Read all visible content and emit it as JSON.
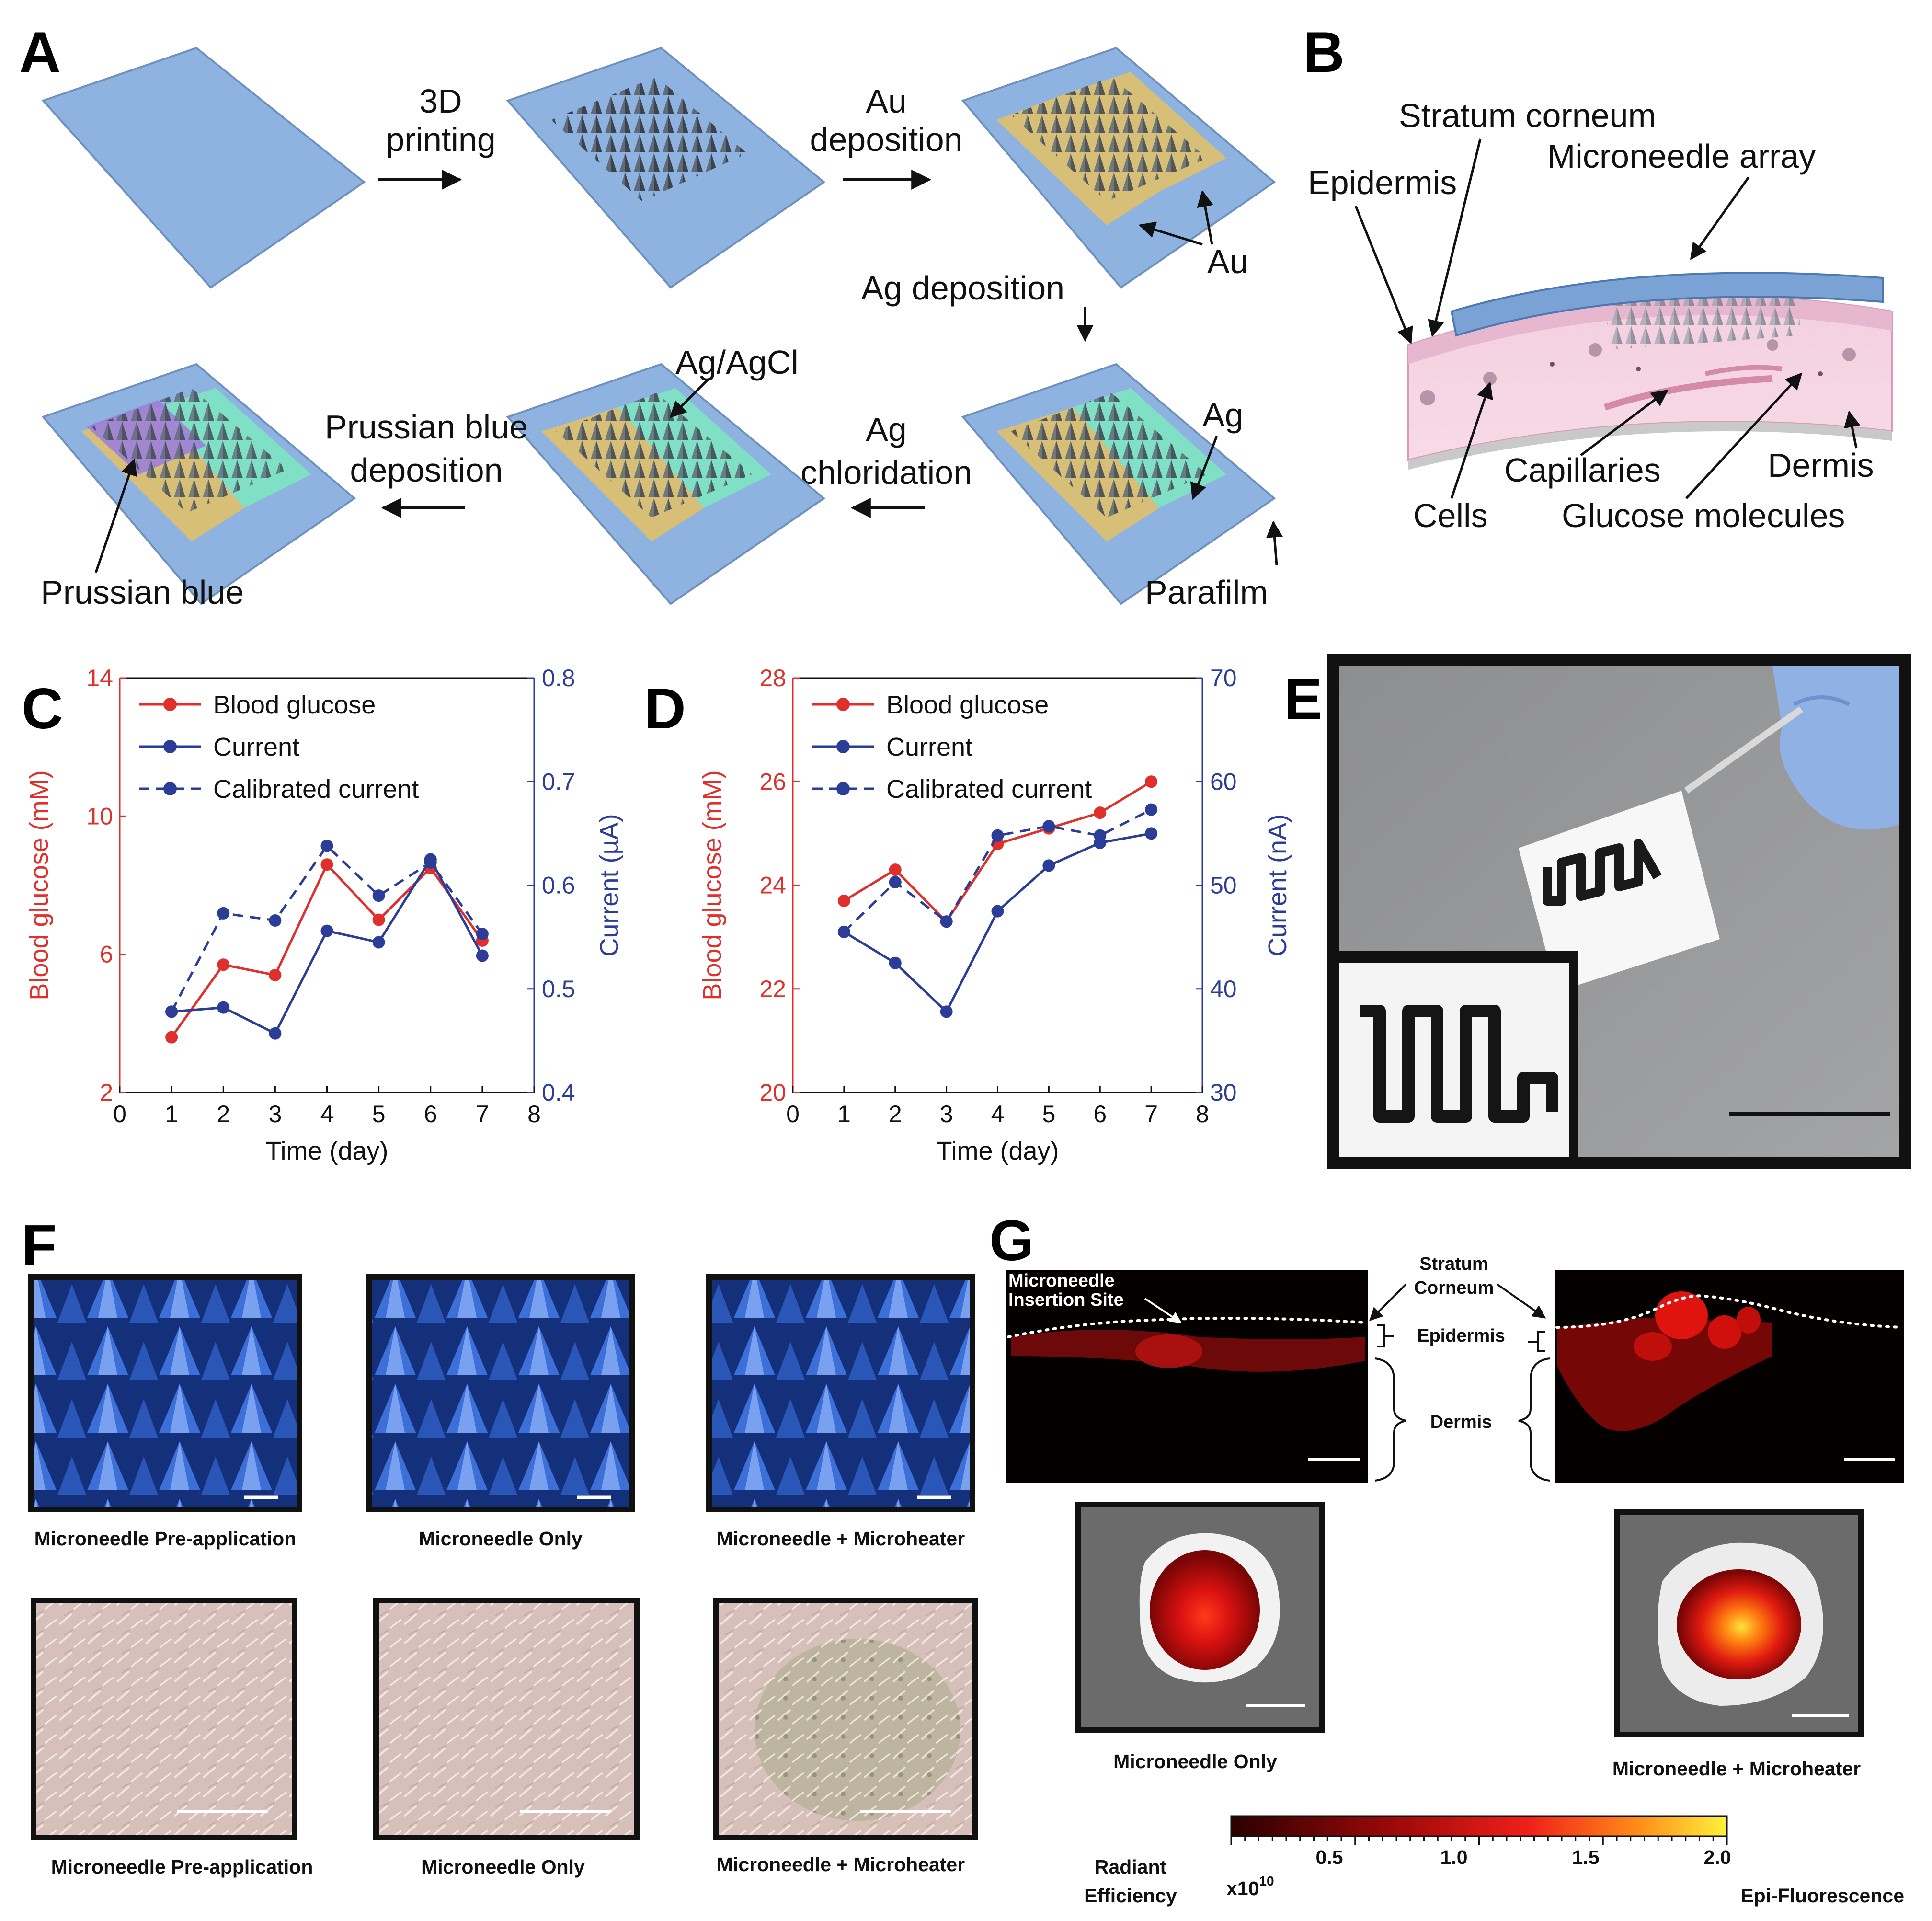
{
  "colors": {
    "blood_glucose": "#e0302b",
    "current": "#2c3d98",
    "substrate": "#8fb3e0",
    "gold": "#d8bf78",
    "agcl": "#7fe0c6"
  },
  "panel_a": {
    "label": "A",
    "steps": {
      "printing": [
        "3D",
        "printing"
      ],
      "au_deposition": [
        "Au",
        "deposition"
      ],
      "ag_deposition": "Ag deposition",
      "ag_chloridation": [
        "Ag",
        "chloridation"
      ],
      "pb_deposition": [
        "Prussian blue",
        "deposition"
      ]
    },
    "annotations": {
      "au": "Au",
      "ag": "Ag",
      "parafilm": "Parafilm",
      "ag_agcl": "Ag/AgCl",
      "prussian_blue": "Prussian blue"
    }
  },
  "panel_b": {
    "label": "B",
    "stratum_corneum": "Stratum corneum",
    "microneedle_array": "Microneedle array",
    "epidermis": "Epidermis",
    "capillaries": "Capillaries",
    "dermis": "Dermis",
    "cells": "Cells",
    "glucose_molecules": "Glucose molecules"
  },
  "panel_c": {
    "label": "C"
  },
  "panel_d": {
    "label": "D"
  },
  "chart_data": [
    {
      "type": "line",
      "panel": "C",
      "xlabel": "Time (day)",
      "ylabel": "Blood glucose (mM)",
      "y2label": "Current (µA)",
      "xlim": [
        0,
        8
      ],
      "xticks": [
        "0",
        "1",
        "2",
        "3",
        "4",
        "5",
        "6",
        "7",
        "8"
      ],
      "ylim": [
        2,
        14
      ],
      "yticks": [
        "2",
        "6",
        "10",
        "14"
      ],
      "y2lim": [
        0.4,
        0.8
      ],
      "y2ticks": [
        "0.4",
        "0.5",
        "0.6",
        "0.7",
        "0.8"
      ],
      "legend_position": "top-left",
      "series": [
        {
          "name": "Blood glucose",
          "axis": "left",
          "style": "solid",
          "color": "#e0302b",
          "x": [
            1,
            2,
            3,
            4,
            5,
            6,
            7
          ],
          "values": [
            3.6,
            5.7,
            5.4,
            8.6,
            7.0,
            8.5,
            6.4
          ]
        },
        {
          "name": "Current",
          "axis": "right",
          "style": "solid",
          "color": "#2c3d98",
          "x": [
            1,
            2,
            3,
            4,
            5,
            6,
            7
          ],
          "values": [
            0.478,
            0.482,
            0.457,
            0.556,
            0.545,
            0.625,
            0.532
          ]
        },
        {
          "name": "Calibrated current",
          "axis": "right",
          "style": "dashed",
          "color": "#2c3d98",
          "x": [
            1,
            2,
            3,
            4,
            5,
            6,
            7
          ],
          "values": [
            0.478,
            0.573,
            0.566,
            0.638,
            0.59,
            0.622,
            0.553
          ]
        }
      ]
    },
    {
      "type": "line",
      "panel": "D",
      "xlabel": "Time (day)",
      "ylabel": "Blood glucose (mM)",
      "y2label": "Current (nA)",
      "xlim": [
        0,
        8
      ],
      "xticks": [
        "0",
        "1",
        "2",
        "3",
        "4",
        "5",
        "6",
        "7",
        "8"
      ],
      "ylim": [
        20,
        28
      ],
      "yticks": [
        "20",
        "22",
        "24",
        "26",
        "28"
      ],
      "y2lim": [
        30,
        70
      ],
      "y2ticks": [
        "30",
        "40",
        "50",
        "60",
        "70"
      ],
      "legend_position": "top-left",
      "series": [
        {
          "name": "Blood glucose",
          "axis": "left",
          "style": "solid",
          "color": "#e0302b",
          "x": [
            1,
            2,
            3,
            4,
            5,
            6,
            7
          ],
          "values": [
            23.7,
            24.3,
            23.3,
            24.8,
            25.1,
            25.4,
            26.0
          ]
        },
        {
          "name": "Current",
          "axis": "right",
          "style": "solid",
          "color": "#2c3d98",
          "x": [
            1,
            2,
            3,
            4,
            5,
            6,
            7
          ],
          "values": [
            45.5,
            42.5,
            37.8,
            47.5,
            51.9,
            54.1,
            55.0
          ]
        },
        {
          "name": "Calibrated current",
          "axis": "right",
          "style": "dashed",
          "color": "#2c3d98",
          "x": [
            1,
            2,
            3,
            4,
            5,
            6,
            7
          ],
          "values": [
            45.5,
            50.3,
            46.5,
            54.8,
            55.7,
            54.8,
            57.3
          ]
        }
      ]
    }
  ],
  "panel_e": {
    "label": "E"
  },
  "panel_f": {
    "label": "F",
    "top_captions": [
      "Microneedle Pre-application",
      "Microneedle Only",
      "Microneedle + Microheater"
    ],
    "bottom_captions": [
      "Microneedle Pre-application",
      "Microneedle Only",
      "Microneedle + Microheater"
    ]
  },
  "panel_g": {
    "label": "G",
    "insertion_site": [
      "Microneedle",
      "Insertion Site"
    ],
    "stratum_corneum": [
      "Stratum",
      "Corneum"
    ],
    "epidermis": "Epidermis",
    "dermis": "Dermis",
    "captions": [
      "Microneedle Only",
      "Microneedle + Microheater"
    ],
    "colorbar": {
      "title": [
        "Radiant",
        "Efficiency"
      ],
      "multiplier": "x10",
      "exponent": "10",
      "ticks": [
        "0.5",
        "1.0",
        "1.5",
        "2.0"
      ],
      "mode": "Epi-Fluorescence"
    }
  }
}
